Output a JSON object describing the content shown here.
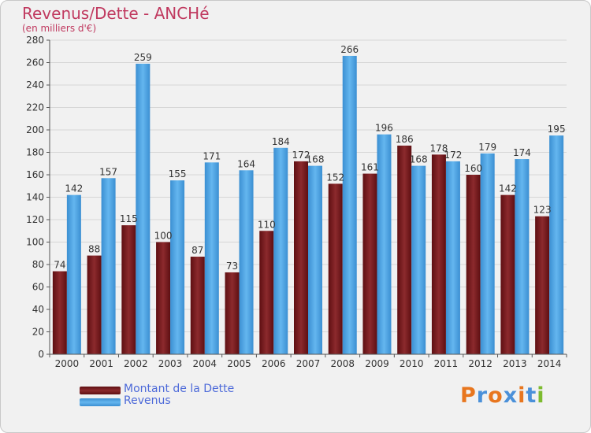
{
  "title": "Revenus/Dette - ANCHé",
  "subtitle": "(en milliers d'€)",
  "chart_data": {
    "type": "bar",
    "title": "Revenus/Dette - ANCHé",
    "subtitle": "(en milliers d'€)",
    "categories": [
      "2000",
      "2001",
      "2002",
      "2003",
      "2004",
      "2005",
      "2006",
      "2007",
      "2008",
      "2009",
      "2010",
      "2011",
      "2012",
      "2013",
      "2014"
    ],
    "series": [
      {
        "name": "Montant de la Dette",
        "color": "#7a1a1c",
        "values": [
          74,
          88,
          115,
          100,
          87,
          73,
          110,
          172,
          152,
          161,
          186,
          178,
          160,
          142,
          123
        ]
      },
      {
        "name": "Revenus",
        "color": "#4aa3e4",
        "values": [
          142,
          157,
          259,
          155,
          171,
          164,
          184,
          168,
          266,
          196,
          168,
          172,
          179,
          174,
          195
        ]
      }
    ],
    "ylim": [
      0,
      280
    ],
    "yticks": [
      0,
      20,
      40,
      60,
      80,
      100,
      120,
      140,
      160,
      180,
      200,
      220,
      240,
      260,
      280
    ],
    "grid": true,
    "legend": "bottom-left"
  },
  "legend": [
    {
      "label": "Montant de la Dette",
      "color": "#7a1a1c"
    },
    {
      "label": "Revenus",
      "color": "#4aa3e4"
    }
  ],
  "logo": {
    "text": "Proxiti",
    "colors": [
      "#e8761e",
      "#4a90d9",
      "#e8761e",
      "#4a90d9",
      "#e8761e",
      "#4a90d9",
      "#7dbb2f"
    ]
  }
}
